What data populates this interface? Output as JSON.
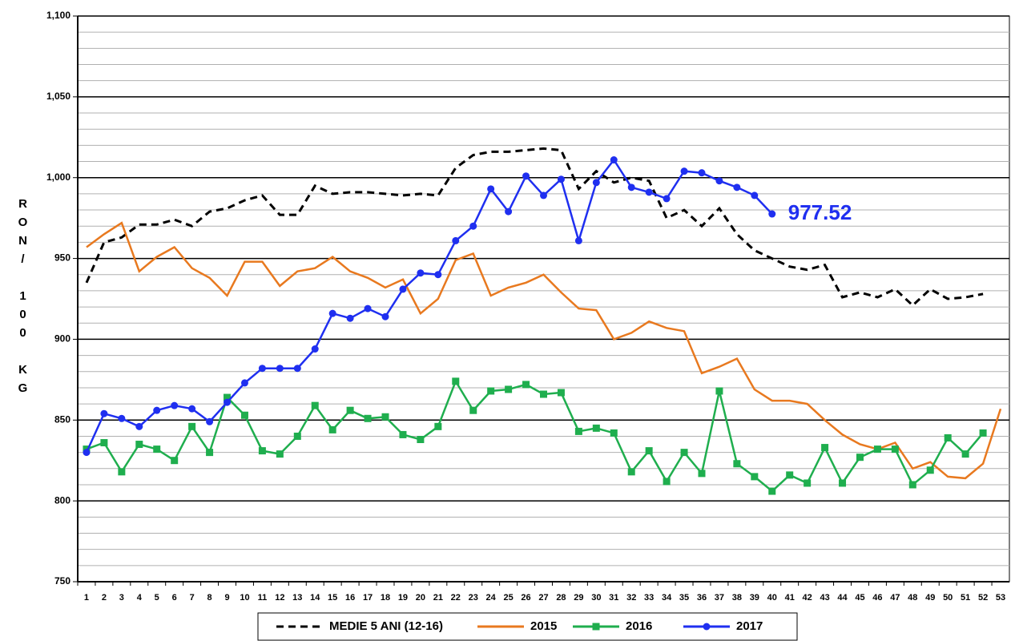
{
  "chart_data": {
    "type": "line",
    "y_label": "RON/ 100 KG",
    "categories": [
      "1",
      "2",
      "3",
      "4",
      "5",
      "6",
      "7",
      "8",
      "9",
      "10",
      "11",
      "12",
      "13",
      "14",
      "15",
      "16",
      "17",
      "18",
      "19",
      "20",
      "21",
      "22",
      "23",
      "24",
      "25",
      "26",
      "27",
      "28",
      "29",
      "30",
      "31",
      "32",
      "33",
      "34",
      "35",
      "36",
      "37",
      "38",
      "39",
      "40",
      "41",
      "42",
      "43",
      "44",
      "45",
      "46",
      "47",
      "48",
      "49",
      "50",
      "51",
      "52",
      "53"
    ],
    "series": [
      {
        "name": "MEDIE 5 ANI (12-16)",
        "color": "#000000",
        "dash": true,
        "marker": null,
        "values": [
          935,
          960,
          963,
          971,
          971,
          974,
          970,
          979,
          981,
          986,
          989,
          977,
          977,
          995,
          990,
          991,
          991,
          990,
          989,
          990,
          989,
          1006,
          1014,
          1016,
          1016,
          1017,
          1018,
          1017,
          993,
          1004,
          997,
          1000,
          998,
          975,
          980,
          970,
          981,
          965,
          955,
          950,
          945,
          943,
          946,
          926,
          929,
          926,
          931,
          921,
          931,
          925,
          926,
          928,
          null
        ]
      },
      {
        "name": "2015",
        "color": "#e8791f",
        "dash": false,
        "marker": null,
        "values": [
          957,
          965,
          972,
          942,
          951,
          957,
          944,
          938,
          927,
          948,
          948,
          933,
          942,
          944,
          951,
          942,
          938,
          932,
          937,
          916,
          925,
          949,
          953,
          927,
          932,
          935,
          940,
          929,
          919,
          918,
          900,
          904,
          911,
          907,
          905,
          879,
          883,
          888,
          869,
          862,
          862,
          860,
          850,
          841,
          835,
          832,
          836,
          820,
          824,
          815,
          814,
          823,
          857
        ]
      },
      {
        "name": "2016",
        "color": "#1fae4e",
        "dash": false,
        "marker": "square",
        "values": [
          832,
          836,
          818,
          835,
          832,
          825,
          846,
          830,
          864,
          853,
          831,
          829,
          840,
          859,
          844,
          856,
          851,
          852,
          841,
          838,
          846,
          874,
          856,
          868,
          869,
          872,
          866,
          867,
          843,
          845,
          842,
          818,
          831,
          812,
          830,
          817,
          868,
          823,
          815,
          806,
          816,
          811,
          833,
          811,
          827,
          832,
          832,
          810,
          819,
          839,
          829,
          842,
          null
        ]
      },
      {
        "name": "2017",
        "color": "#1f2ff0",
        "dash": false,
        "marker": "circle",
        "values": [
          830,
          854,
          851,
          846,
          856,
          859,
          857,
          849,
          861,
          873,
          882,
          882,
          882,
          894,
          916,
          913,
          919,
          914,
          931,
          941,
          940,
          961,
          970,
          993,
          979,
          1001,
          989,
          999,
          961,
          997,
          1011,
          994,
          991,
          987,
          1004,
          1003,
          998,
          994,
          989,
          977.52,
          null,
          null,
          null,
          null,
          null,
          null,
          null,
          null,
          null,
          null,
          null,
          null,
          null
        ]
      }
    ],
    "annotation": "977.52",
    "ylim": [
      750,
      1100
    ],
    "yticks": [
      750,
      800,
      850,
      900,
      950,
      {
        "value": 1000,
        "label": "1,000"
      },
      {
        "value": 1050,
        "label": "1,050"
      },
      {
        "value": 1100,
        "label": "1,100"
      }
    ],
    "minor_yticks": [
      760,
      770,
      780,
      790,
      810,
      820,
      830,
      840,
      860,
      870,
      880,
      890,
      910,
      920,
      930,
      940,
      960,
      970,
      980,
      990,
      1010,
      1020,
      1030,
      1040,
      1060,
      1070,
      1080,
      1090
    ],
    "grid": true
  }
}
